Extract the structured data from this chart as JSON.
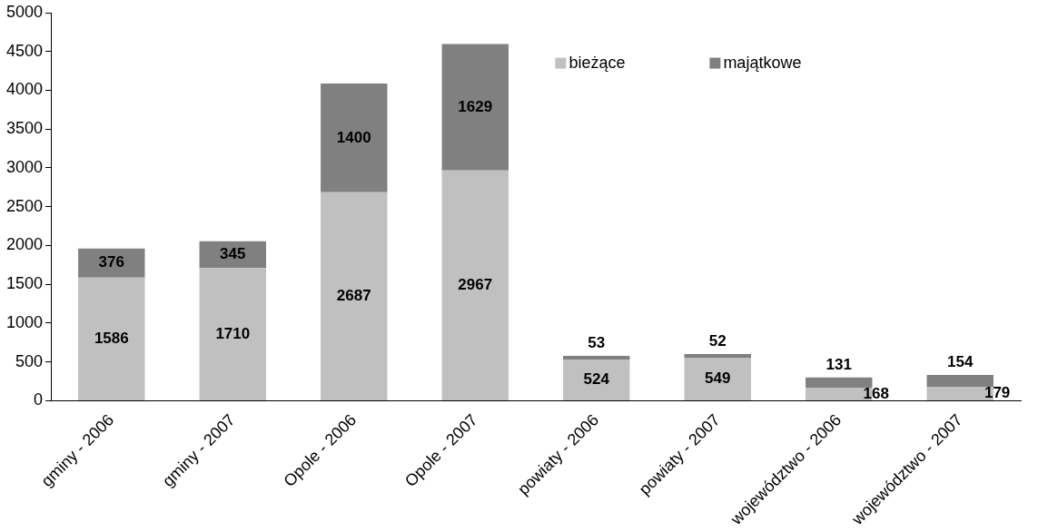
{
  "chart_data": {
    "type": "bar",
    "stacked": true,
    "categories": [
      "gminy - 2006",
      "gminy - 2007",
      "Opole - 2006",
      "Opole - 2007",
      "powiaty - 2006",
      "powiaty - 2007",
      "województwo - 2006",
      "województwo - 2007"
    ],
    "series": [
      {
        "name": "bieżące",
        "color": "#c0c0c0",
        "values": [
          1586,
          1710,
          2687,
          2967,
          524,
          549,
          168,
          179
        ]
      },
      {
        "name": "majątkowe",
        "color": "#808080",
        "values": [
          376,
          345,
          1400,
          1629,
          53,
          52,
          131,
          154
        ]
      }
    ],
    "ylim": [
      0,
      5000
    ],
    "yticks": [
      0,
      500,
      1000,
      1500,
      2000,
      2500,
      3000,
      3500,
      4000,
      4500,
      5000
    ],
    "grid": false,
    "legend": "top right",
    "data_labels": true
  }
}
